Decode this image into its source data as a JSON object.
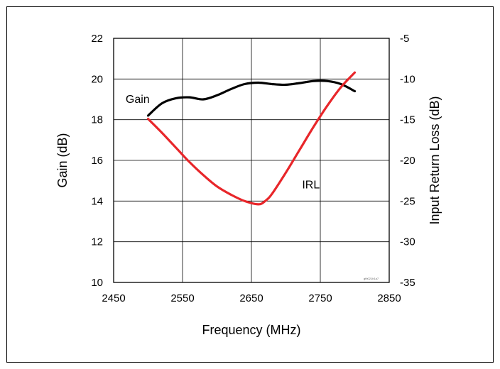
{
  "chart_data": {
    "type": "line",
    "xlabel": "Frequency (MHz)",
    "ylabel_left": "Gain (dB)",
    "ylabel_right": "Input Return Loss (dB)",
    "xlim": [
      2450,
      2850
    ],
    "ylim_left": [
      10,
      22
    ],
    "ylim_right": [
      -35,
      -5
    ],
    "x_ticks": [
      "2450",
      "2550",
      "2650",
      "2750",
      "2850"
    ],
    "y_ticks_left": [
      "22",
      "20",
      "18",
      "16",
      "14",
      "12",
      "10"
    ],
    "y_ticks_right": [
      "-5",
      "-10",
      "-15",
      "-20",
      "-25",
      "-30",
      "-35"
    ],
    "grid": true,
    "series": [
      {
        "name": "Gain",
        "axis": "left",
        "color": "#000000",
        "x": [
          2500,
          2520,
          2540,
          2560,
          2580,
          2600,
          2620,
          2640,
          2660,
          2680,
          2700,
          2720,
          2740,
          2760,
          2780,
          2800
        ],
        "y": [
          18.2,
          18.8,
          19.05,
          19.1,
          19.0,
          19.2,
          19.5,
          19.75,
          19.82,
          19.75,
          19.72,
          19.8,
          19.9,
          19.9,
          19.75,
          19.4
        ]
      },
      {
        "name": "IRL",
        "axis": "right",
        "color": "#e8262a",
        "x": [
          2500,
          2520,
          2540,
          2560,
          2580,
          2600,
          2620,
          2640,
          2660,
          2670,
          2680,
          2700,
          2720,
          2740,
          2760,
          2780,
          2800
        ],
        "y": [
          -14.9,
          -16.6,
          -18.4,
          -20.2,
          -21.8,
          -23.2,
          -24.2,
          -25.0,
          -25.4,
          -25.0,
          -24.1,
          -21.5,
          -18.7,
          -15.9,
          -13.3,
          -11.0,
          -9.2
        ]
      }
    ],
    "annotations": [
      {
        "text": "Gain",
        "x": 2486,
        "y_left": 19.0
      },
      {
        "text": "IRL",
        "x": 2738,
        "y_left": 14.8
      }
    ],
    "watermark": "gfb021b1a7"
  }
}
